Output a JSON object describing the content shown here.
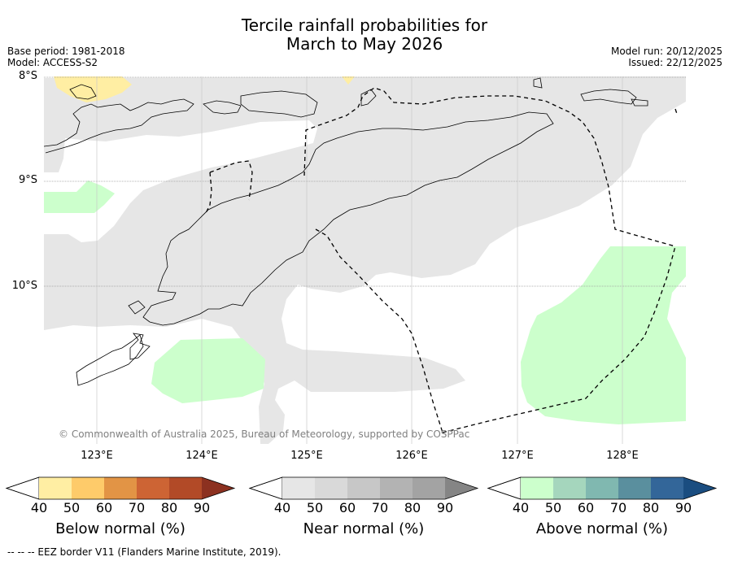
{
  "title": {
    "line1": "Tercile rainfall probabilities for",
    "line2": "March to May 2026"
  },
  "meta": {
    "base_period": "Base period: 1981-2018",
    "model": "Model: ACCESS-S2",
    "model_run": "Model run: 20/12/2025",
    "issued": "Issued: 22/12/2025"
  },
  "map": {
    "lat_labels": [
      "8°S",
      "9°S",
      "10°S"
    ],
    "lon_labels": [
      "123°E",
      "124°E",
      "125°E",
      "126°E",
      "127°E",
      "128°E"
    ],
    "copyright": "© Commonwealth of Australia 2025, Bureau of Meteorology, supported by COSPPac",
    "colors": {
      "below_normal_light": "#ffeea3",
      "near_normal_light": "#e6e6e6",
      "above_normal_light": "#ccffcc"
    }
  },
  "colorbars": [
    {
      "title": "Below normal (%)",
      "ticks": [
        "40",
        "50",
        "60",
        "70",
        "80",
        "90"
      ],
      "colors": [
        "#ffeea3",
        "#fecb6a",
        "#e29445",
        "#cd6434",
        "#b24a27",
        "#8c3120"
      ]
    },
    {
      "title": "Near normal (%)",
      "ticks": [
        "40",
        "50",
        "60",
        "70",
        "80",
        "90"
      ],
      "colors": [
        "#e6e6e6",
        "#d9d9d9",
        "#c7c7c7",
        "#b3b3b3",
        "#a3a3a3",
        "#858585"
      ]
    },
    {
      "title": "Above normal (%)",
      "ticks": [
        "40",
        "50",
        "60",
        "70",
        "80",
        "90"
      ],
      "colors": [
        "#ccffcc",
        "#a5d6bd",
        "#80b8b0",
        "#5a8f9e",
        "#336699",
        "#1a4d80"
      ]
    }
  ],
  "footer": "--  --  -- EEZ border V11 (Flanders Marine Institute, 2019)."
}
